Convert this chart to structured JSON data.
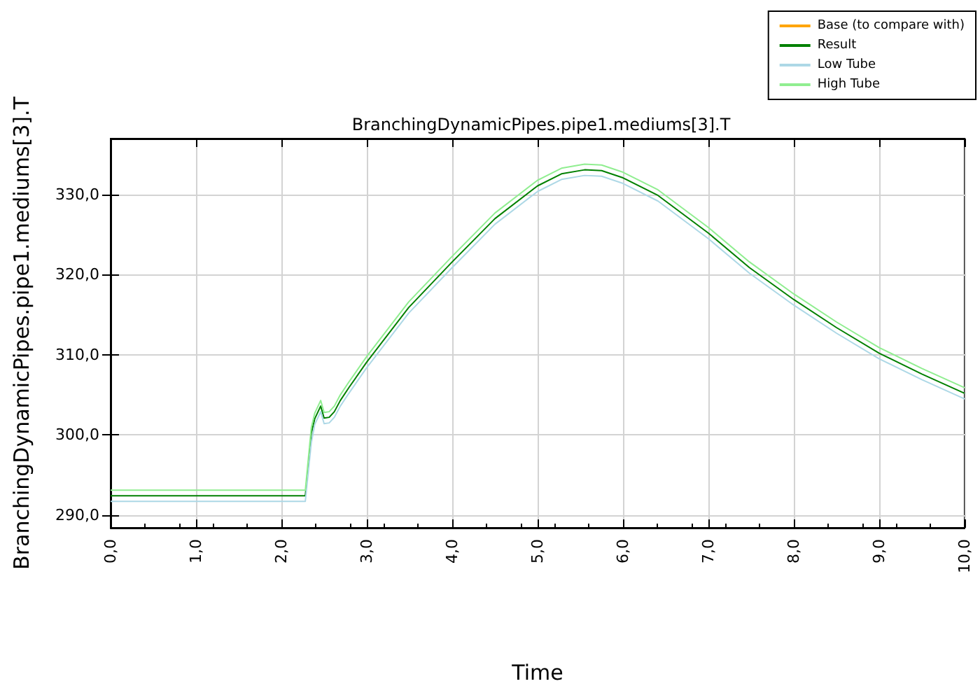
{
  "chart_data": {
    "type": "line",
    "title": "BranchingDynamicPipes.pipe1.mediums[3].T",
    "xlabel": "Time",
    "ylabel": "BranchingDynamicPipes.pipe1.mediums[3].T",
    "x": [
      0,
      2.28,
      2.35,
      2.39,
      2.46,
      2.5,
      2.56,
      2.62,
      2.69,
      2.79,
      3.0,
      3.49,
      4.0,
      4.5,
      5.0,
      5.28,
      5.55,
      5.75,
      6.0,
      6.41,
      7.0,
      7.48,
      8.0,
      8.5,
      9.0,
      9.5,
      10
    ],
    "series": [
      {
        "name": "Base (to compare with)",
        "color": "#ffa500",
        "values": [
          null,
          null,
          null,
          null,
          null,
          null,
          null,
          null,
          null,
          null,
          null,
          null,
          null,
          null,
          null,
          null,
          null,
          null,
          null,
          null,
          null,
          null,
          null,
          null,
          null,
          null,
          null
        ]
      },
      {
        "name": "Result",
        "color": "#008000",
        "values": [
          292.4,
          292.4,
          300.2,
          302.0,
          303.6,
          302.1,
          302.2,
          302.9,
          304.3,
          305.9,
          309.1,
          315.9,
          321.6,
          327.0,
          331.1,
          332.6,
          333.1,
          333.0,
          332.1,
          329.9,
          325.2,
          320.9,
          316.9,
          313.4,
          310.2,
          307.6,
          305.2
        ]
      },
      {
        "name": "Low Tube",
        "color": "#add8e6",
        "values": [
          291.7,
          291.7,
          299.0,
          301.3,
          302.9,
          301.4,
          301.5,
          302.2,
          303.6,
          305.2,
          308.4,
          315.2,
          320.9,
          326.3,
          330.4,
          331.9,
          332.4,
          332.3,
          331.4,
          329.2,
          324.5,
          320.2,
          316.2,
          312.7,
          309.5,
          306.9,
          304.5
        ]
      },
      {
        "name": "High Tube",
        "color": "#90ee90",
        "values": [
          293.1,
          293.1,
          300.9,
          302.7,
          304.3,
          302.8,
          302.9,
          303.6,
          305.0,
          306.6,
          309.8,
          316.6,
          322.3,
          327.7,
          331.8,
          333.3,
          333.8,
          333.7,
          332.8,
          330.6,
          325.9,
          321.6,
          317.6,
          314.1,
          310.9,
          308.3,
          305.9
        ]
      }
    ],
    "xlim": [
      0,
      10
    ],
    "ylim": [
      288.4,
      337.0
    ],
    "xticks": [
      {
        "value": 0,
        "label": "0,0"
      },
      {
        "value": 1,
        "label": "1,0"
      },
      {
        "value": 2,
        "label": "2,0"
      },
      {
        "value": 3,
        "label": "3,0"
      },
      {
        "value": 4,
        "label": "4,0"
      },
      {
        "value": 5,
        "label": "5,0"
      },
      {
        "value": 6,
        "label": "6,0"
      },
      {
        "value": 7,
        "label": "7,0"
      },
      {
        "value": 8,
        "label": "8,0"
      },
      {
        "value": 9,
        "label": "9,0"
      },
      {
        "value": 10,
        "label": "10,0"
      }
    ],
    "yticks": [
      {
        "value": 290,
        "label": "290,0"
      },
      {
        "value": 300,
        "label": "300,0"
      },
      {
        "value": 310,
        "label": "310,0"
      },
      {
        "value": 320,
        "label": "320,0"
      },
      {
        "value": 330,
        "label": "330,0"
      }
    ],
    "grid": true,
    "legend": "top right",
    "marker": "none",
    "line_style": "solid"
  }
}
